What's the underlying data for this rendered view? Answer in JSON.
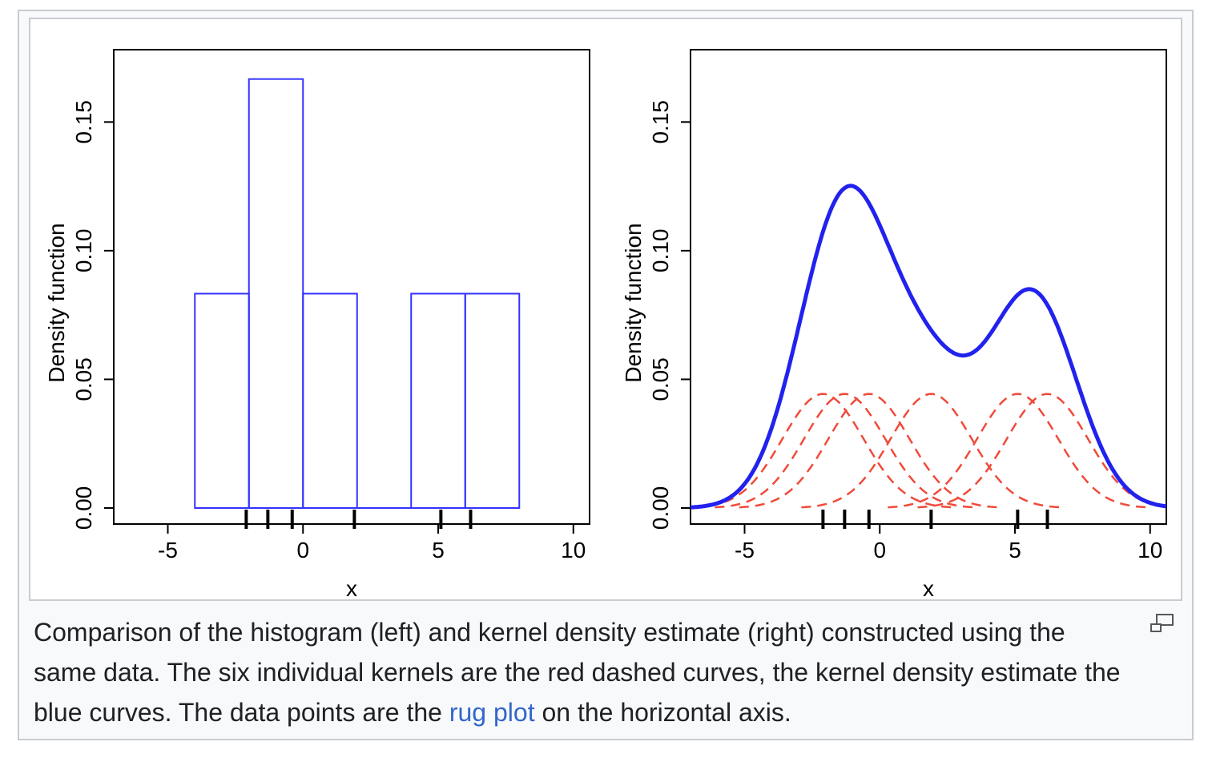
{
  "chart_data": [
    {
      "type": "histogram",
      "panel": "left",
      "xlabel": "x",
      "ylabel": "Density function",
      "xlim": [
        -7.0,
        10.6
      ],
      "ylim": [
        0,
        0.165
      ],
      "xticks": [
        -5,
        0,
        5,
        10
      ],
      "yticks": [
        0.0,
        0.05,
        0.1,
        0.15
      ],
      "xtick_labels": [
        "-5",
        "0",
        "5",
        "10"
      ],
      "ytick_labels": [
        "0.00",
        "0.05",
        "0.10",
        "0.15"
      ],
      "bins": [
        {
          "x0": -4,
          "x1": -2,
          "density": 0.0833
        },
        {
          "x0": -2,
          "x1": 0,
          "density": 0.1667
        },
        {
          "x0": 0,
          "x1": 2,
          "density": 0.0833
        },
        {
          "x0": 2,
          "x1": 4,
          "density": 0
        },
        {
          "x0": 4,
          "x1": 6,
          "density": 0.0833
        },
        {
          "x0": 6,
          "x1": 8,
          "density": 0.0833
        }
      ],
      "rug": [
        -2.1,
        -1.3,
        -0.4,
        1.9,
        5.1,
        6.2
      ],
      "bar_color": "#3333ff",
      "grid": false
    },
    {
      "type": "line",
      "panel": "right",
      "xlabel": "x",
      "ylabel": "Density function",
      "xlim": [
        -7.0,
        10.6
      ],
      "ylim": [
        0,
        0.165
      ],
      "xticks": [
        -5,
        0,
        5,
        10
      ],
      "yticks": [
        0.0,
        0.05,
        0.1,
        0.15
      ],
      "xtick_labels": [
        "-5",
        "0",
        "5",
        "10"
      ],
      "ytick_labels": [
        "0.00",
        "0.05",
        "0.10",
        "0.15"
      ],
      "data_points": [
        -2.1,
        -1.3,
        -0.4,
        1.9,
        5.1,
        6.2
      ],
      "kernel": "gaussian",
      "bandwidth": 1.5,
      "kernel_color": "#f04a3a",
      "kde_color": "#2222ee",
      "rug": [
        -2.1,
        -1.3,
        -0.4,
        1.9,
        5.1,
        6.2
      ],
      "grid": false
    }
  ],
  "caption": {
    "before_link": "Comparison of the histogram (left) and kernel density estimate (right) constructed using the same data. The six individual kernels are the red dashed curves, the kernel density estimate the blue curves. The data points are the ",
    "link": "rug plot",
    "after_link": " on the horizontal axis."
  },
  "icons": {
    "enlarge": "enlarge-icon"
  }
}
